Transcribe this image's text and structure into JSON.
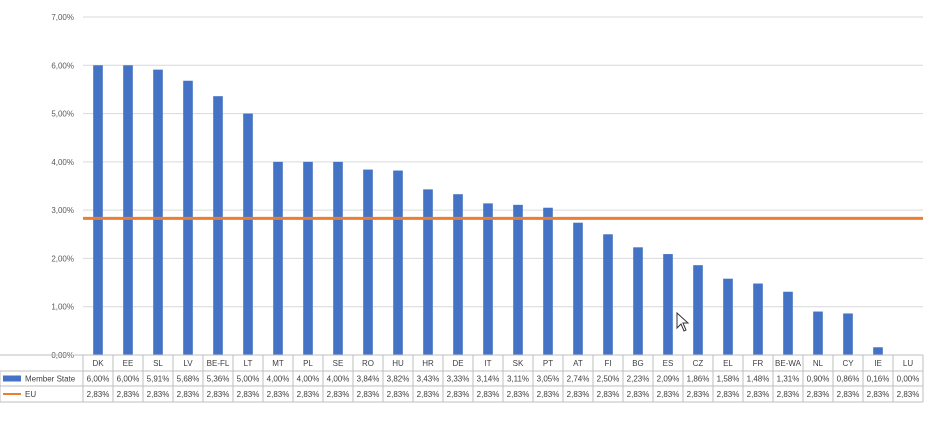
{
  "chart_data": {
    "type": "bar",
    "categories": [
      "DK",
      "EE",
      "SL",
      "LV",
      "BE-FL",
      "LT",
      "MT",
      "PL",
      "SE",
      "RO",
      "HU",
      "HR",
      "DE",
      "IT",
      "SK",
      "PT",
      "AT",
      "FI",
      "BG",
      "ES",
      "CZ",
      "EL",
      "FR",
      "BE-WA",
      "NL",
      "CY",
      "IE",
      "LU"
    ],
    "series": [
      {
        "name": "Member State",
        "kind": "bar",
        "color": "#4472C4",
        "values": [
          6.0,
          6.0,
          5.91,
          5.68,
          5.36,
          5.0,
          4.0,
          4.0,
          4.0,
          3.84,
          3.82,
          3.43,
          3.33,
          3.14,
          3.11,
          3.05,
          2.74,
          2.5,
          2.23,
          2.09,
          1.86,
          1.58,
          1.48,
          1.31,
          0.9,
          0.86,
          0.16,
          0.0
        ],
        "labels": [
          "6,00%",
          "6,00%",
          "5,91%",
          "5,68%",
          "5,36%",
          "5,00%",
          "4,00%",
          "4,00%",
          "4,00%",
          "3,84%",
          "3,82%",
          "3,43%",
          "3,33%",
          "3,14%",
          "3,11%",
          "3,05%",
          "2,74%",
          "2,50%",
          "2,23%",
          "2,09%",
          "1,86%",
          "1,58%",
          "1,48%",
          "1,31%",
          "0,90%",
          "0,86%",
          "0,16%",
          "0,00%"
        ]
      },
      {
        "name": "EU",
        "kind": "line",
        "color": "#ED7D31",
        "values": [
          2.83,
          2.83,
          2.83,
          2.83,
          2.83,
          2.83,
          2.83,
          2.83,
          2.83,
          2.83,
          2.83,
          2.83,
          2.83,
          2.83,
          2.83,
          2.83,
          2.83,
          2.83,
          2.83,
          2.83,
          2.83,
          2.83,
          2.83,
          2.83,
          2.83,
          2.83,
          2.83,
          2.83
        ],
        "labels": [
          "2,83%",
          "2,83%",
          "2,83%",
          "2,83%",
          "2,83%",
          "2,83%",
          "2,83%",
          "2,83%",
          "2,83%",
          "2,83%",
          "2,83%",
          "2,83%",
          "2,83%",
          "2,83%",
          "2,83%",
          "2,83%",
          "2,83%",
          "2,83%",
          "2,83%",
          "2,83%",
          "2,83%",
          "2,83%",
          "2,83%",
          "2,83%",
          "2,83%",
          "2,83%",
          "2,83%",
          "2,83%"
        ]
      }
    ],
    "ylim": [
      0,
      7
    ],
    "yticks": [
      0,
      1,
      2,
      3,
      4,
      5,
      6,
      7
    ],
    "ytick_labels": [
      "0,00%",
      "1,00%",
      "2,00%",
      "3,00%",
      "4,00%",
      "5,00%",
      "6,00%",
      "7,00%"
    ],
    "grid": true,
    "legend": "data-table"
  }
}
